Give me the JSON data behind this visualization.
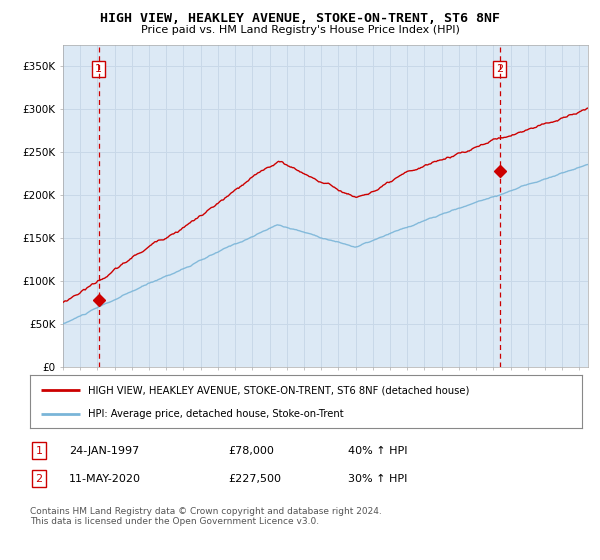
{
  "title": "HIGH VIEW, HEAKLEY AVENUE, STOKE-ON-TRENT, ST6 8NF",
  "subtitle": "Price paid vs. HM Land Registry's House Price Index (HPI)",
  "bg_color": "#dce9f5",
  "grid_color": "#c8d8e8",
  "sale1_date": 1997.07,
  "sale1_price": 78000,
  "sale1_label": "1",
  "sale2_date": 2020.37,
  "sale2_price": 227500,
  "sale2_label": "2",
  "legend_line1": "HIGH VIEW, HEAKLEY AVENUE, STOKE-ON-TRENT, ST6 8NF (detached house)",
  "legend_line2": "HPI: Average price, detached house, Stoke-on-Trent",
  "table_row1": [
    "1",
    "24-JAN-1997",
    "£78,000",
    "40% ↑ HPI"
  ],
  "table_row2": [
    "2",
    "11-MAY-2020",
    "£227,500",
    "30% ↑ HPI"
  ],
  "footer": "Contains HM Land Registry data © Crown copyright and database right 2024.\nThis data is licensed under the Open Government Licence v3.0.",
  "ylim": [
    0,
    375000
  ],
  "xlim_start": 1995.0,
  "xlim_end": 2025.5,
  "hpi_color": "#7ab5d8",
  "price_color": "#cc0000",
  "marker_color": "#cc0000",
  "dashed_line_color": "#cc0000"
}
